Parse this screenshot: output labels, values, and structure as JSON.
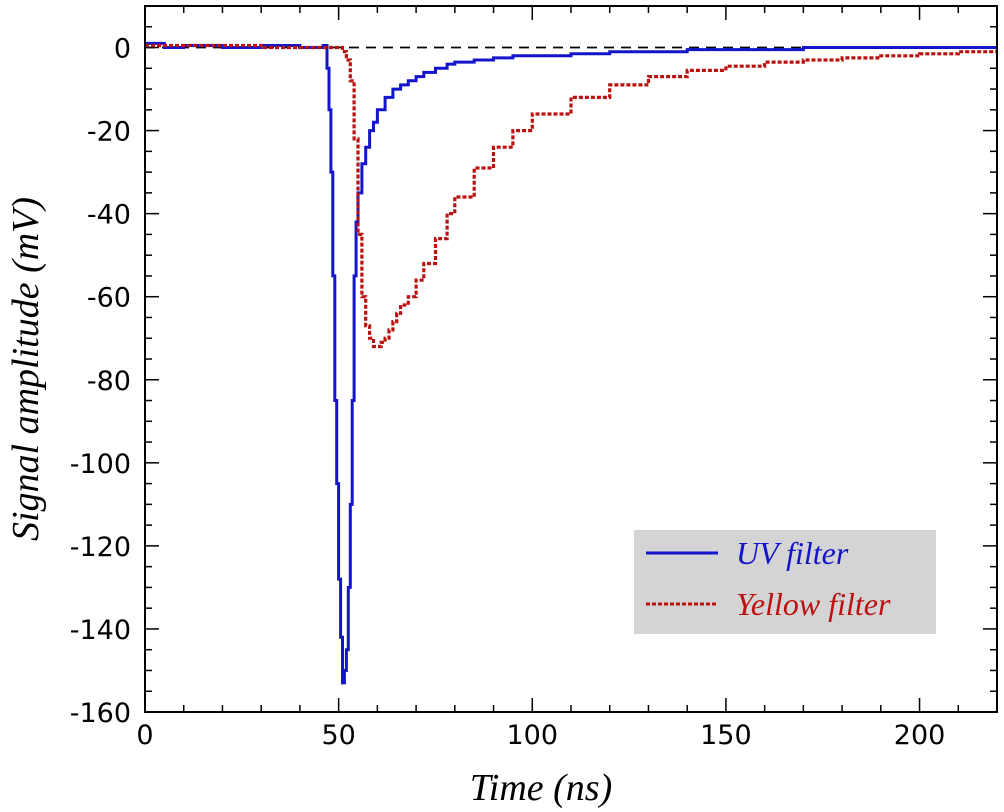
{
  "chart_data": {
    "type": "line",
    "title": "",
    "xlabel": "Time (ns)",
    "ylabel": "Signal amplitude (mV)",
    "xlim": [
      0,
      220
    ],
    "ylim": [
      -160,
      10
    ],
    "x_ticks": [
      0,
      50,
      100,
      150,
      200
    ],
    "x_tick_labels": [
      "0",
      "50",
      "100",
      "150",
      "200"
    ],
    "y_ticks": [
      0,
      -20,
      -40,
      -60,
      -80,
      -100,
      -120,
      -140,
      -160
    ],
    "y_tick_labels": [
      "0",
      "-20",
      "-40",
      "-60",
      "-80",
      "-100",
      "-120",
      "-140",
      "-160"
    ],
    "grid": false,
    "reference_line": {
      "y": 0,
      "style": "dashed",
      "color": "#000000"
    },
    "legend": {
      "position": "bottom-right",
      "background": "#d4d4d4",
      "entries": [
        "UV filter",
        "Yellow filter"
      ]
    },
    "series": [
      {
        "name": "UV filter",
        "color": "#1414cc",
        "style": "solid",
        "x": [
          0,
          5,
          10,
          20,
          30,
          40,
          45,
          46,
          47,
          47.5,
          48,
          48.5,
          49,
          49.5,
          50,
          50.5,
          51,
          51.5,
          52,
          52.5,
          53,
          53.5,
          54,
          54.5,
          55,
          56,
          57,
          58,
          59,
          60,
          62,
          64,
          66,
          68,
          70,
          72,
          75,
          78,
          80,
          85,
          90,
          95,
          100,
          110,
          120,
          130,
          140,
          150,
          160,
          170,
          180,
          190,
          200,
          210,
          220
        ],
        "y": [
          1,
          0,
          0.5,
          0,
          0.5,
          0,
          0,
          0.5,
          -5,
          -15,
          -30,
          -55,
          -85,
          -105,
          -128,
          -142,
          -153,
          -150,
          -145,
          -130,
          -110,
          -85,
          -55,
          -42,
          -35,
          -28,
          -24,
          -20,
          -18,
          -15,
          -12,
          -10,
          -9,
          -8,
          -7,
          -6,
          -5,
          -4,
          -3.5,
          -3,
          -2.5,
          -2,
          -2,
          -1.5,
          -1,
          -1,
          -0.5,
          -0.5,
          -0.5,
          0,
          0,
          0,
          0,
          0,
          0
        ]
      },
      {
        "name": "Yellow filter",
        "color": "#bb1111",
        "style": "dashed",
        "x": [
          0,
          10,
          20,
          30,
          40,
          48,
          50,
          51,
          52,
          53,
          54,
          55,
          56,
          57,
          58,
          59,
          60,
          61,
          62,
          63,
          64,
          65,
          66,
          68,
          70,
          72,
          75,
          78,
          80,
          85,
          90,
          95,
          100,
          110,
          120,
          130,
          140,
          150,
          160,
          170,
          180,
          190,
          200,
          210,
          220
        ],
        "y": [
          0.5,
          0.5,
          0.5,
          0,
          0,
          0,
          0,
          -1,
          -3,
          -8,
          -22,
          -45,
          -60,
          -67,
          -70,
          -72,
          -72,
          -71,
          -70,
          -68,
          -66,
          -64,
          -62,
          -60,
          -56,
          -52,
          -46,
          -40,
          -36,
          -29,
          -24,
          -20,
          -16,
          -12,
          -9,
          -7,
          -5.5,
          -4.5,
          -3.5,
          -3,
          -2.5,
          -2,
          -1.5,
          -1,
          -1
        ]
      }
    ]
  }
}
